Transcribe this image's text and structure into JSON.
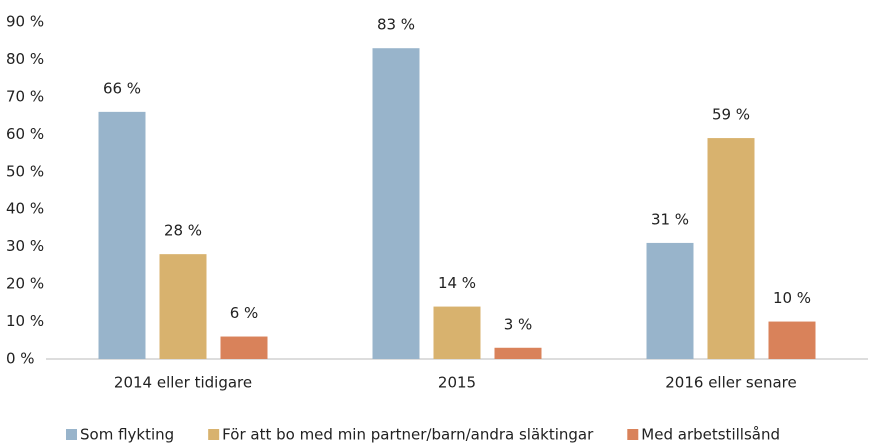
{
  "chart_data": {
    "type": "bar",
    "categories": [
      "2014 eller tidigare",
      "2015",
      "2016 eller senare"
    ],
    "series": [
      {
        "name": "Som flykting",
        "color": "#98b4cb",
        "values": [
          66,
          83,
          31
        ],
        "value_labels": [
          "66 %",
          "83 %",
          "31 %"
        ]
      },
      {
        "name": "För att bo med min partner/barn/andra släktingar",
        "color": "#d8b26e",
        "values": [
          28,
          14,
          59
        ],
        "value_labels": [
          "28 %",
          "14 %",
          "59 %"
        ]
      },
      {
        "name": "Med arbetstillsånd",
        "color": "#d9825a",
        "values": [
          6,
          3,
          10
        ],
        "value_labels": [
          "6 %",
          "3 %",
          "10 %"
        ]
      }
    ],
    "ylim": [
      0,
      90
    ],
    "yticks": [
      {
        "value": 0,
        "label": "0 %"
      },
      {
        "value": 10,
        "label": "10 %"
      },
      {
        "value": 20,
        "label": "20 %"
      },
      {
        "value": 30,
        "label": "30 %"
      },
      {
        "value": 40,
        "label": "40 %"
      },
      {
        "value": 50,
        "label": "50 %"
      },
      {
        "value": 60,
        "label": "60 %"
      },
      {
        "value": 70,
        "label": "70 %"
      },
      {
        "value": 80,
        "label": "80 %"
      },
      {
        "value": 90,
        "label": "90 %"
      }
    ],
    "grid": false,
    "legend": "bottom"
  }
}
